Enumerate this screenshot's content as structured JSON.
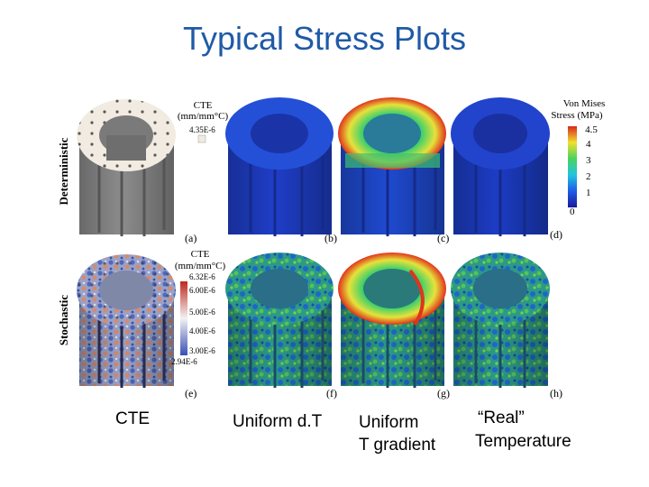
{
  "slide": {
    "title": "Typical Stress Plots"
  },
  "rows": {
    "top": "Deterministic",
    "bottom": "Stochastic"
  },
  "panels": {
    "a": "(a)",
    "b": "(b)",
    "c": "(c)",
    "d": "(d)",
    "e": "(e)",
    "f": "(f)",
    "g": "(g)",
    "h": "(h)"
  },
  "cte_legend_top": {
    "title_line1": "CTE",
    "title_line2": "(mm/mm°C)",
    "value": "4.35E-6"
  },
  "cte_legend_bottom": {
    "title_line1": "CTE",
    "title_line2": "(mm/mm°C)",
    "ticks": [
      "6.32E-6",
      "6.00E-6",
      "5.00E-6",
      "4.00E-6",
      "3.00E-6",
      "2.94E-6"
    ]
  },
  "vm_legend": {
    "title_line1": "Von Mises",
    "title_line2": "Stress (MPa)",
    "ticks": [
      "4.5",
      "4",
      "3",
      "2",
      "1",
      "0"
    ]
  },
  "captions": {
    "col1": "CTE",
    "col2": "Uniform d.T",
    "col3_line1": "Uniform",
    "col3_line2": "T gradient",
    "col4_line1": "“Real”",
    "col4_line2": "Temperature"
  },
  "colors": {
    "title": "#1f5aa6",
    "cte_uniform": "#f2ebe2",
    "stress_low": "#1732c8",
    "stress_mid": "#2ec27e",
    "stress_high": "#e8e030",
    "stress_peak": "#e0341c",
    "cte_high": "#d0502c",
    "cte_low": "#3c5ec0"
  }
}
